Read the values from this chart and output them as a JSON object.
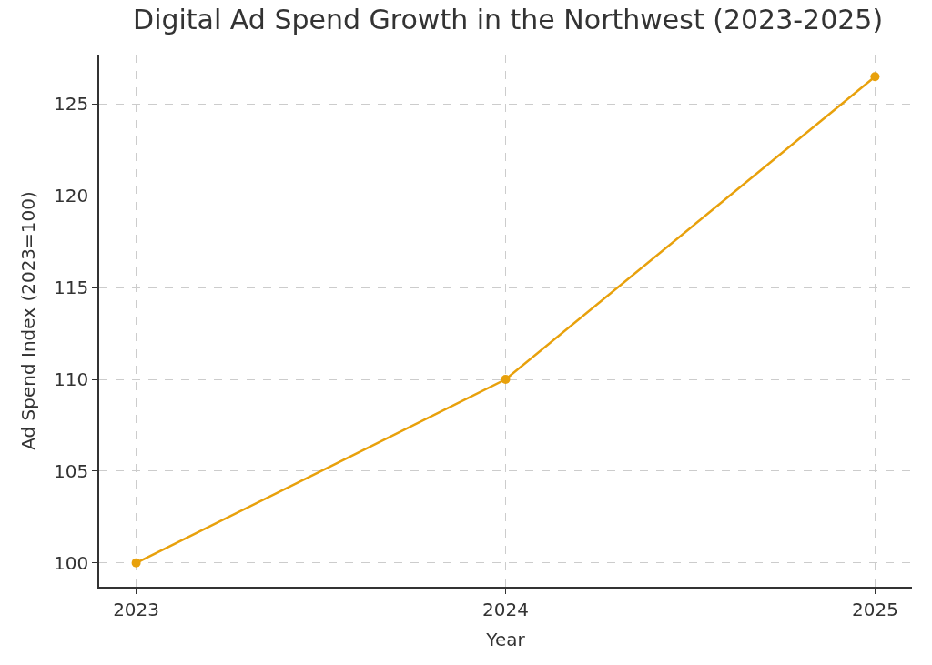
{
  "chart_data": {
    "type": "line",
    "title": "Digital Ad Spend Growth in the Northwest (2023-2025)",
    "xlabel": "Year",
    "ylabel": "Ad Spend Index (2023=100)",
    "x": [
      2023,
      2024,
      2025
    ],
    "series": [
      {
        "color": "#e8a10c",
        "values": [
          100,
          110,
          126.5
        ]
      }
    ],
    "xlim": [
      2022.9,
      2025.1
    ],
    "xticks": [
      2023,
      2024,
      2025
    ],
    "ylim": [
      98.7,
      127.7
    ],
    "yticks": [
      100,
      105,
      110,
      115,
      120,
      125
    ],
    "grid": true,
    "marker": "circle",
    "line_style": "solid"
  }
}
